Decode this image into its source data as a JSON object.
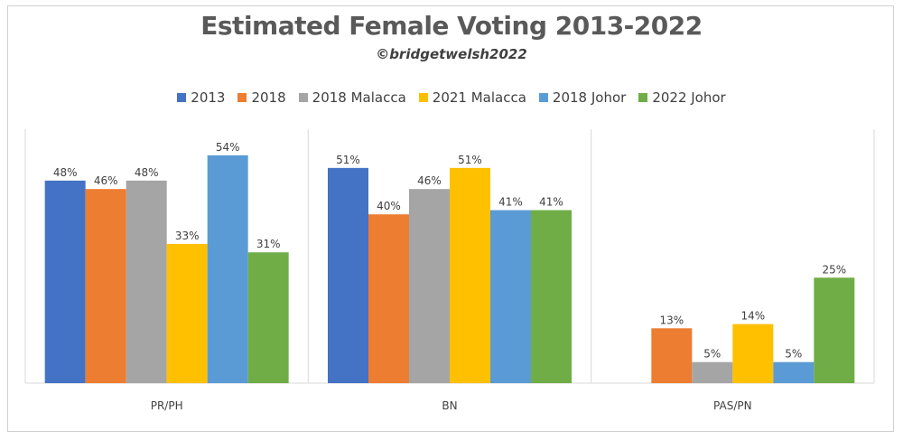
{
  "chart_data": {
    "type": "bar",
    "title": "Estimated Female Voting 2013-2022",
    "subtitle": "©bridgetwelsh2022",
    "categories": [
      "PR/PH",
      "BN",
      "PAS/PN"
    ],
    "series": [
      {
        "name": "2013",
        "color": "#4472C4",
        "values": [
          48,
          51,
          null
        ],
        "labels": [
          "48%",
          "51%",
          ""
        ]
      },
      {
        "name": "2018",
        "color": "#ED7D31",
        "values": [
          46,
          40,
          13
        ],
        "labels": [
          "46%",
          "40%",
          "13%"
        ]
      },
      {
        "name": "2018 Malacca",
        "color": "#A5A5A5",
        "values": [
          48,
          46,
          5
        ],
        "labels": [
          "48%",
          "46%",
          "5%"
        ]
      },
      {
        "name": "2021 Malacca",
        "color": "#FFC000",
        "values": [
          33,
          51,
          14
        ],
        "labels": [
          "33%",
          "51%",
          "14%"
        ]
      },
      {
        "name": "2018 Johor",
        "color": "#5B9BD5",
        "values": [
          54,
          41,
          5
        ],
        "labels": [
          "54%",
          "41%",
          "5%"
        ]
      },
      {
        "name": "2022 Johor",
        "color": "#70AD47",
        "values": [
          31,
          41,
          25
        ],
        "labels": [
          "31%",
          "41%",
          "25%"
        ]
      }
    ],
    "ylim": [
      0,
      56
    ],
    "legend_position": "top",
    "grid": false
  }
}
